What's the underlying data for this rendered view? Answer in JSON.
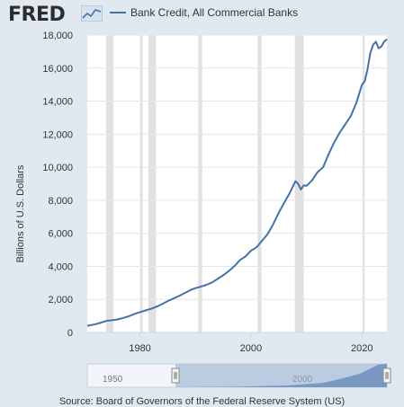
{
  "header": {
    "logo_text": "FRED",
    "legend_label": "Bank Credit, All Commercial Banks",
    "series_color": "#4572a7"
  },
  "navigator": {
    "start_label": "1950",
    "end_label": "2000"
  },
  "footer": {
    "source_text": "Source: Board of Governors of the Federal Reserve System (US)"
  },
  "chart_data": {
    "type": "line",
    "title": "",
    "xlabel": "",
    "ylabel": "Billions of U.S. Dollars",
    "xlim": [
      1970.5,
      2024.5
    ],
    "ylim": [
      0,
      18000
    ],
    "yticks": [
      0,
      2000,
      4000,
      6000,
      8000,
      10000,
      12000,
      14000,
      16000,
      18000
    ],
    "ytick_labels": [
      "0",
      "2,000",
      "4,000",
      "6,000",
      "8,000",
      "10,000",
      "12,000",
      "14,000",
      "16,000",
      "18,000"
    ],
    "xticks": [
      1980,
      2000,
      2020
    ],
    "xtick_labels": [
      "1980",
      "2000",
      "2020"
    ],
    "grid": true,
    "recessions": [
      [
        1973.9,
        1975.2
      ],
      [
        1980.0,
        1980.5
      ],
      [
        1981.5,
        1982.9
      ],
      [
        1990.5,
        1991.2
      ],
      [
        2001.2,
        2001.9
      ],
      [
        2007.9,
        2009.5
      ],
      [
        2020.1,
        2020.4
      ]
    ],
    "series": [
      {
        "name": "Bank Credit, All Commercial Banks",
        "x": [
          1970.5,
          1972,
          1973,
          1974,
          1975,
          1976,
          1977,
          1978,
          1979,
          1980,
          1981,
          1982,
          1983,
          1984,
          1985,
          1986,
          1987,
          1988,
          1989,
          1990,
          1991,
          1992,
          1993,
          1994,
          1995,
          1996,
          1997,
          1998,
          1999,
          2000,
          2001,
          2002,
          2003,
          2004,
          2005,
          2006,
          2007,
          2008,
          2008.5,
          2009,
          2009.5,
          2010,
          2011,
          2012,
          2013,
          2014,
          2015,
          2016,
          2017,
          2018,
          2019,
          2020,
          2020.5,
          2021,
          2021.5,
          2022,
          2022.5,
          2023,
          2023.5,
          2024,
          2024.5
        ],
        "y": [
          400,
          500,
          600,
          700,
          740,
          790,
          880,
          980,
          1120,
          1230,
          1330,
          1430,
          1560,
          1720,
          1900,
          2050,
          2200,
          2370,
          2550,
          2680,
          2780,
          2880,
          3030,
          3240,
          3460,
          3720,
          4010,
          4370,
          4600,
          4950,
          5150,
          5550,
          5950,
          6550,
          7250,
          7850,
          8450,
          9150,
          9000,
          8650,
          8900,
          8870,
          9200,
          9700,
          10000,
          10800,
          11500,
          12100,
          12600,
          13100,
          13900,
          15000,
          15200,
          15900,
          16900,
          17400,
          17600,
          17200,
          17300,
          17600,
          17750
        ]
      }
    ]
  }
}
